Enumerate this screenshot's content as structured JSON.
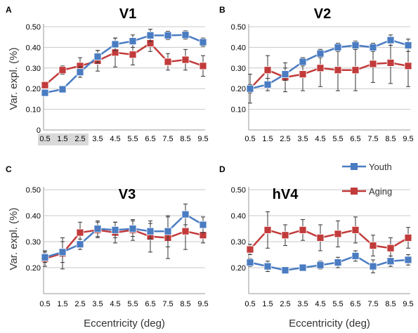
{
  "chart_data": [
    {
      "type": "line",
      "panel_letter": "A",
      "title": "V1",
      "xlabel": "",
      "ylabel": "Var. expl. (%)",
      "ylim": [
        0,
        0.5
      ],
      "yticks": [
        "0",
        "0.10",
        "0.20",
        "0.30",
        "0.40",
        "0.50"
      ],
      "show_zero_tick": true,
      "categories": [
        "0.5",
        "1.5",
        "2.5",
        "3.5",
        "4.5",
        "5.5",
        "6.5",
        "7.5",
        "8.5",
        "9.5"
      ],
      "highlight_categories": [
        "0.5",
        "1.5",
        "2.5"
      ],
      "series": [
        {
          "name": "Youth",
          "color": "#4a7cc2",
          "values": [
            0.18,
            0.197,
            0.28,
            0.355,
            0.415,
            0.43,
            0.458,
            0.458,
            0.46,
            0.425
          ],
          "errors": [
            0.01,
            0.015,
            0.025,
            0.03,
            0.03,
            0.03,
            0.03,
            0.02,
            0.02,
            0.02
          ]
        },
        {
          "name": "Aging",
          "color": "#c23b3b",
          "values": [
            0.217,
            0.29,
            0.31,
            0.335,
            0.375,
            0.365,
            0.42,
            0.33,
            0.34,
            0.31
          ],
          "errors": [
            0.01,
            0.02,
            0.04,
            0.05,
            0.07,
            0.05,
            0.04,
            0.04,
            0.05,
            0.05
          ]
        }
      ]
    },
    {
      "type": "line",
      "panel_letter": "B",
      "title": "V2",
      "xlabel": "",
      "ylabel": "",
      "ylim": [
        0,
        0.5
      ],
      "yticks": [
        "0.10",
        "0.20",
        "0.30",
        "0.40",
        "0.50"
      ],
      "show_zero_tick": false,
      "categories": [
        "0.5",
        "1.5",
        "2.5",
        "3.5",
        "4.5",
        "5.5",
        "6.5",
        "7.5",
        "8.5",
        "9.5"
      ],
      "series": [
        {
          "name": "Youth",
          "color": "#4a7cc2",
          "values": [
            0.2,
            0.22,
            0.27,
            0.33,
            0.37,
            0.4,
            0.41,
            0.4,
            0.435,
            0.41
          ],
          "errors": [
            0.02,
            0.03,
            0.03,
            0.02,
            0.02,
            0.02,
            0.02,
            0.02,
            0.025,
            0.03
          ]
        },
        {
          "name": "Aging",
          "color": "#c23b3b",
          "values": [
            0.2,
            0.29,
            0.255,
            0.27,
            0.3,
            0.29,
            0.29,
            0.32,
            0.325,
            0.31
          ],
          "errors": [
            0.07,
            0.07,
            0.07,
            0.08,
            0.09,
            0.1,
            0.1,
            0.09,
            0.1,
            0.1
          ]
        }
      ]
    },
    {
      "type": "line",
      "panel_letter": "C",
      "title": "V3",
      "xlabel": "Eccentricity (deg)",
      "ylabel": "Var. expl. (%)",
      "ylim": [
        0.1,
        0.5
      ],
      "yticks": [
        "0.20",
        "0.30",
        "0.40",
        "0.50"
      ],
      "show_zero_tick": false,
      "categories": [
        "0.5",
        "1.5",
        "2.5",
        "3.5",
        "4.5",
        "5.5",
        "6.5",
        "7.5",
        "8.5",
        "9.5"
      ],
      "series": [
        {
          "name": "Youth",
          "color": "#4a7cc2",
          "values": [
            0.24,
            0.26,
            0.29,
            0.35,
            0.345,
            0.35,
            0.34,
            0.34,
            0.405,
            0.365
          ],
          "errors": [
            0.02,
            0.04,
            0.02,
            0.03,
            0.03,
            0.03,
            0.03,
            0.06,
            0.04,
            0.03
          ]
        },
        {
          "name": "Aging",
          "color": "#c23b3b",
          "values": [
            0.235,
            0.255,
            0.335,
            0.345,
            0.335,
            0.345,
            0.32,
            0.315,
            0.34,
            0.325
          ],
          "errors": [
            0.03,
            0.06,
            0.04,
            0.03,
            0.04,
            0.04,
            0.06,
            0.08,
            0.07,
            0.03
          ]
        }
      ]
    },
    {
      "type": "line",
      "panel_letter": "D",
      "title": "hV4",
      "xlabel": "Eccentricity (deg)",
      "ylabel": "",
      "ylim": [
        0.1,
        0.5
      ],
      "yticks": [
        "0.20",
        "0.30",
        "0.40",
        "0.50"
      ],
      "show_zero_tick": false,
      "categories": [
        "0.5",
        "1.5",
        "2.5",
        "3.5",
        "4.5",
        "5.5",
        "6.5",
        "7.5",
        "8.5",
        "9.5"
      ],
      "legend_position": "top-right",
      "series": [
        {
          "name": "Youth",
          "color": "#4a7cc2",
          "values": [
            0.22,
            0.205,
            0.19,
            0.2,
            0.21,
            0.22,
            0.245,
            0.205,
            0.225,
            0.23
          ],
          "errors": [
            0.015,
            0.02,
            0.01,
            0.01,
            0.015,
            0.02,
            0.02,
            0.025,
            0.02,
            0.02
          ]
        },
        {
          "name": "Aging",
          "color": "#c23b3b",
          "values": [
            0.27,
            0.345,
            0.325,
            0.345,
            0.315,
            0.33,
            0.345,
            0.285,
            0.275,
            0.315
          ],
          "errors": [
            0.02,
            0.07,
            0.04,
            0.04,
            0.05,
            0.05,
            0.05,
            0.04,
            0.04,
            0.04
          ]
        }
      ]
    }
  ],
  "legend": [
    {
      "label": "Youth",
      "color": "#4a7cc2"
    },
    {
      "label": "Aging",
      "color": "#c23b3b"
    }
  ]
}
